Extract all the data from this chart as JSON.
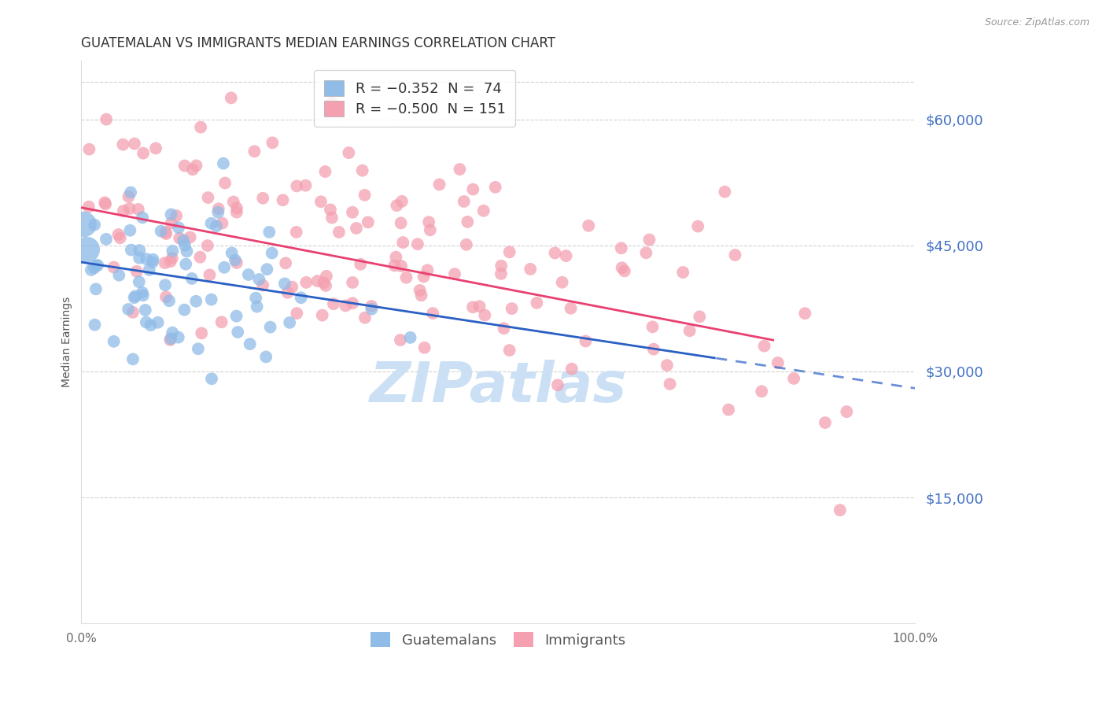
{
  "title": "GUATEMALAN VS IMMIGRANTS MEDIAN EARNINGS CORRELATION CHART",
  "source": "Source: ZipAtlas.com",
  "ylabel": "Median Earnings",
  "ytick_labels": [
    "$60,000",
    "$45,000",
    "$30,000",
    "$15,000"
  ],
  "ytick_values": [
    60000,
    45000,
    30000,
    15000
  ],
  "ymin": 0,
  "ymax": 67000,
  "xmin": 0.0,
  "xmax": 1.0,
  "guatemalan_color": "#90bce8",
  "immigrant_color": "#f4a0b0",
  "guatemalan_line_color": "#2a5fc4",
  "immigrant_line_color": "#e84070",
  "background_color": "#ffffff",
  "grid_color": "#cccccc",
  "watermark": "ZIPatlas",
  "watermark_color": "#cce0f5",
  "legend_label_guatemalans": "Guatemalans",
  "legend_label_immigrants": "Immigrants",
  "legend_r_g": "R = ",
  "legend_rv_g": "-0.352",
  "legend_n_g": "N = ",
  "legend_nv_g": " 74",
  "legend_rv_i": "-0.500",
  "legend_nv_i": "151",
  "guatemalan_intercept": 43000,
  "guatemalan_slope": -15000,
  "immigrant_intercept": 49500,
  "immigrant_slope": -19000,
  "title_fontsize": 12,
  "source_fontsize": 9,
  "axis_label_fontsize": 10,
  "tick_fontsize": 11,
  "legend_fontsize": 12,
  "watermark_fontsize": 52,
  "scatter_size": 130
}
